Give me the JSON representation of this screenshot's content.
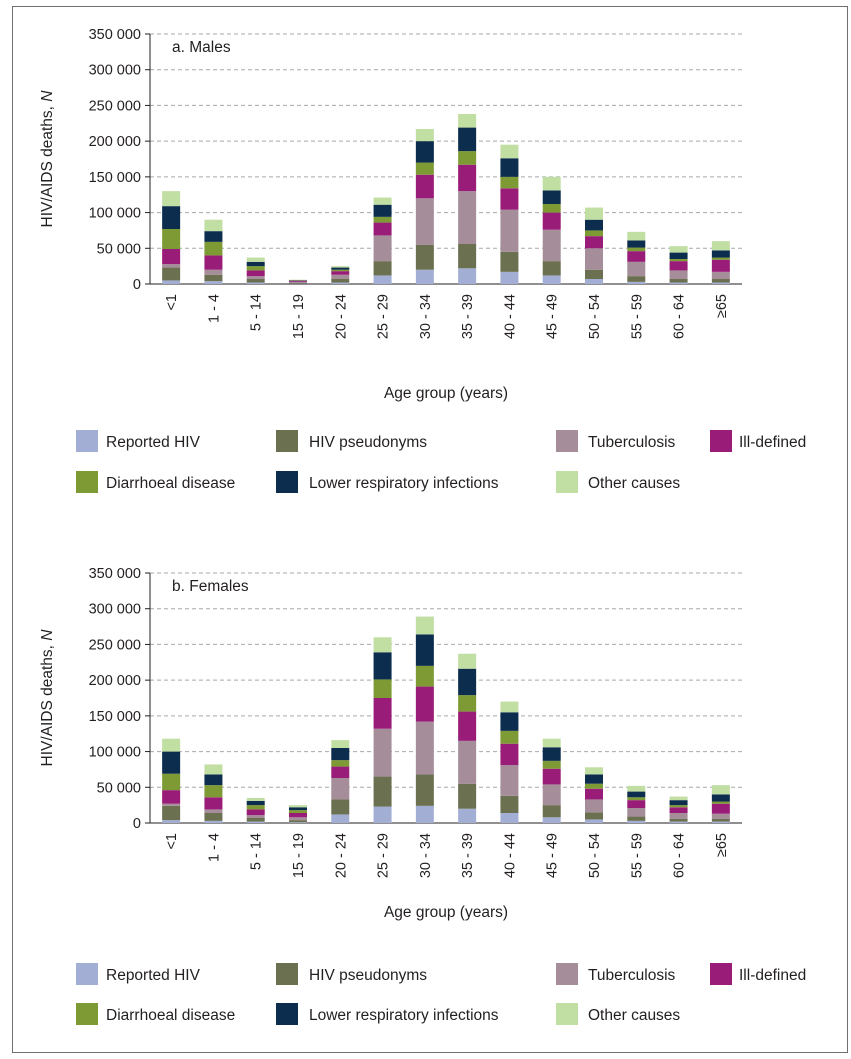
{
  "chart_data": [
    {
      "type": "bar",
      "stacked": true,
      "title": "a. Males",
      "xlabel": "Age group (years)",
      "ylabel": "HIV/AIDS deaths, N",
      "ylim": [
        0,
        350000
      ],
      "yticks": [
        "0",
        "50 000",
        "100 000",
        "150 000",
        "200 000",
        "250 000",
        "300 000",
        "350 000"
      ],
      "grid": true,
      "legend_position": "bottom",
      "categories": [
        "<1",
        "1 - 4",
        "5 - 14",
        "15 - 19",
        "20 - 24",
        "25 - 29",
        "30 - 34",
        "35 - 39",
        "40 - 44",
        "45 - 49",
        "50 - 54",
        "55 - 59",
        "60 - 64",
        "≥65"
      ],
      "series": [
        {
          "name": "Reported HIV",
          "color": "#a2aed4",
          "values": [
            5000,
            4000,
            2000,
            500,
            2000,
            12000,
            20000,
            22000,
            17000,
            12000,
            7000,
            3000,
            2000,
            2000
          ]
        },
        {
          "name": "HIV pseudonyms",
          "color": "#6b7050",
          "values": [
            18000,
            9000,
            5000,
            1000,
            5000,
            20000,
            35000,
            34000,
            28000,
            20000,
            13000,
            8000,
            5000,
            5000
          ]
        },
        {
          "name": "Tuberculosis",
          "color": "#a58d9a",
          "values": [
            5000,
            7000,
            4000,
            1500,
            6000,
            36000,
            65000,
            74000,
            59000,
            44000,
            30000,
            20000,
            12000,
            10000
          ]
        },
        {
          "name": "Ill-defined",
          "color": "#9a1c79",
          "values": [
            21000,
            20000,
            8000,
            1500,
            5000,
            18000,
            33000,
            37000,
            30000,
            24000,
            17000,
            15000,
            13000,
            17000
          ]
        },
        {
          "name": "Diarrhoeal disease",
          "color": "#7d9a35",
          "values": [
            28000,
            19000,
            6000,
            500,
            2000,
            8000,
            17000,
            19000,
            16000,
            12000,
            8000,
            5000,
            3000,
            3000
          ]
        },
        {
          "name": "Lower respiratory infections",
          "color": "#0c2d4d",
          "values": [
            32000,
            15000,
            6000,
            500,
            3000,
            17000,
            30000,
            33000,
            26000,
            19000,
            15000,
            10000,
            9000,
            10000
          ]
        },
        {
          "name": "Other causes",
          "color": "#c1dea3",
          "values": [
            21000,
            16000,
            6000,
            500,
            2000,
            10000,
            17000,
            19000,
            19000,
            19000,
            17000,
            12000,
            9000,
            13000
          ]
        }
      ]
    },
    {
      "type": "bar",
      "stacked": true,
      "title": "b. Females",
      "xlabel": "Age group (years)",
      "ylabel": "HIV/AIDS deaths, N",
      "ylim": [
        0,
        350000
      ],
      "yticks": [
        "0",
        "50 000",
        "100 000",
        "150 000",
        "200 000",
        "250 000",
        "300 000",
        "350 000"
      ],
      "grid": true,
      "legend_position": "bottom",
      "categories": [
        "<1",
        "1 - 4",
        "5 - 14",
        "15 - 19",
        "20 - 24",
        "25 - 29",
        "30 - 34",
        "35 - 39",
        "40 - 44",
        "45 - 49",
        "50 - 54",
        "55 - 59",
        "60 - 64",
        "≥65"
      ],
      "series": [
        {
          "name": "Reported HIV",
          "color": "#a2aed4",
          "values": [
            4000,
            3000,
            2000,
            1000,
            12000,
            23000,
            24000,
            20000,
            14000,
            8000,
            5000,
            3000,
            2000,
            2000
          ]
        },
        {
          "name": "HIV pseudonyms",
          "color": "#6b7050",
          "values": [
            20000,
            11000,
            5000,
            3000,
            21000,
            42000,
            44000,
            35000,
            24000,
            17000,
            10000,
            6000,
            4000,
            4000
          ]
        },
        {
          "name": "Tuberculosis",
          "color": "#a58d9a",
          "values": [
            3000,
            5000,
            4000,
            4000,
            30000,
            67000,
            74000,
            60000,
            43000,
            29000,
            18000,
            12000,
            8000,
            7000
          ]
        },
        {
          "name": "Ill-defined",
          "color": "#9a1c79",
          "values": [
            19000,
            17000,
            8000,
            6000,
            16000,
            43000,
            49000,
            41000,
            30000,
            22000,
            15000,
            11000,
            8000,
            14000
          ]
        },
        {
          "name": "Diarrhoeal disease",
          "color": "#7d9a35",
          "values": [
            23000,
            17000,
            6000,
            4000,
            9000,
            26000,
            29000,
            23000,
            18000,
            11000,
            7000,
            4000,
            3000,
            3000
          ]
        },
        {
          "name": "Lower respiratory infections",
          "color": "#0c2d4d",
          "values": [
            31000,
            15000,
            6000,
            4000,
            17000,
            38000,
            44000,
            37000,
            26000,
            19000,
            13000,
            8000,
            7000,
            10000
          ]
        },
        {
          "name": "Other causes",
          "color": "#c1dea3",
          "values": [
            18000,
            14000,
            4000,
            3000,
            11000,
            21000,
            25000,
            21000,
            15000,
            12000,
            10000,
            8000,
            5000,
            13000
          ]
        }
      ]
    }
  ]
}
